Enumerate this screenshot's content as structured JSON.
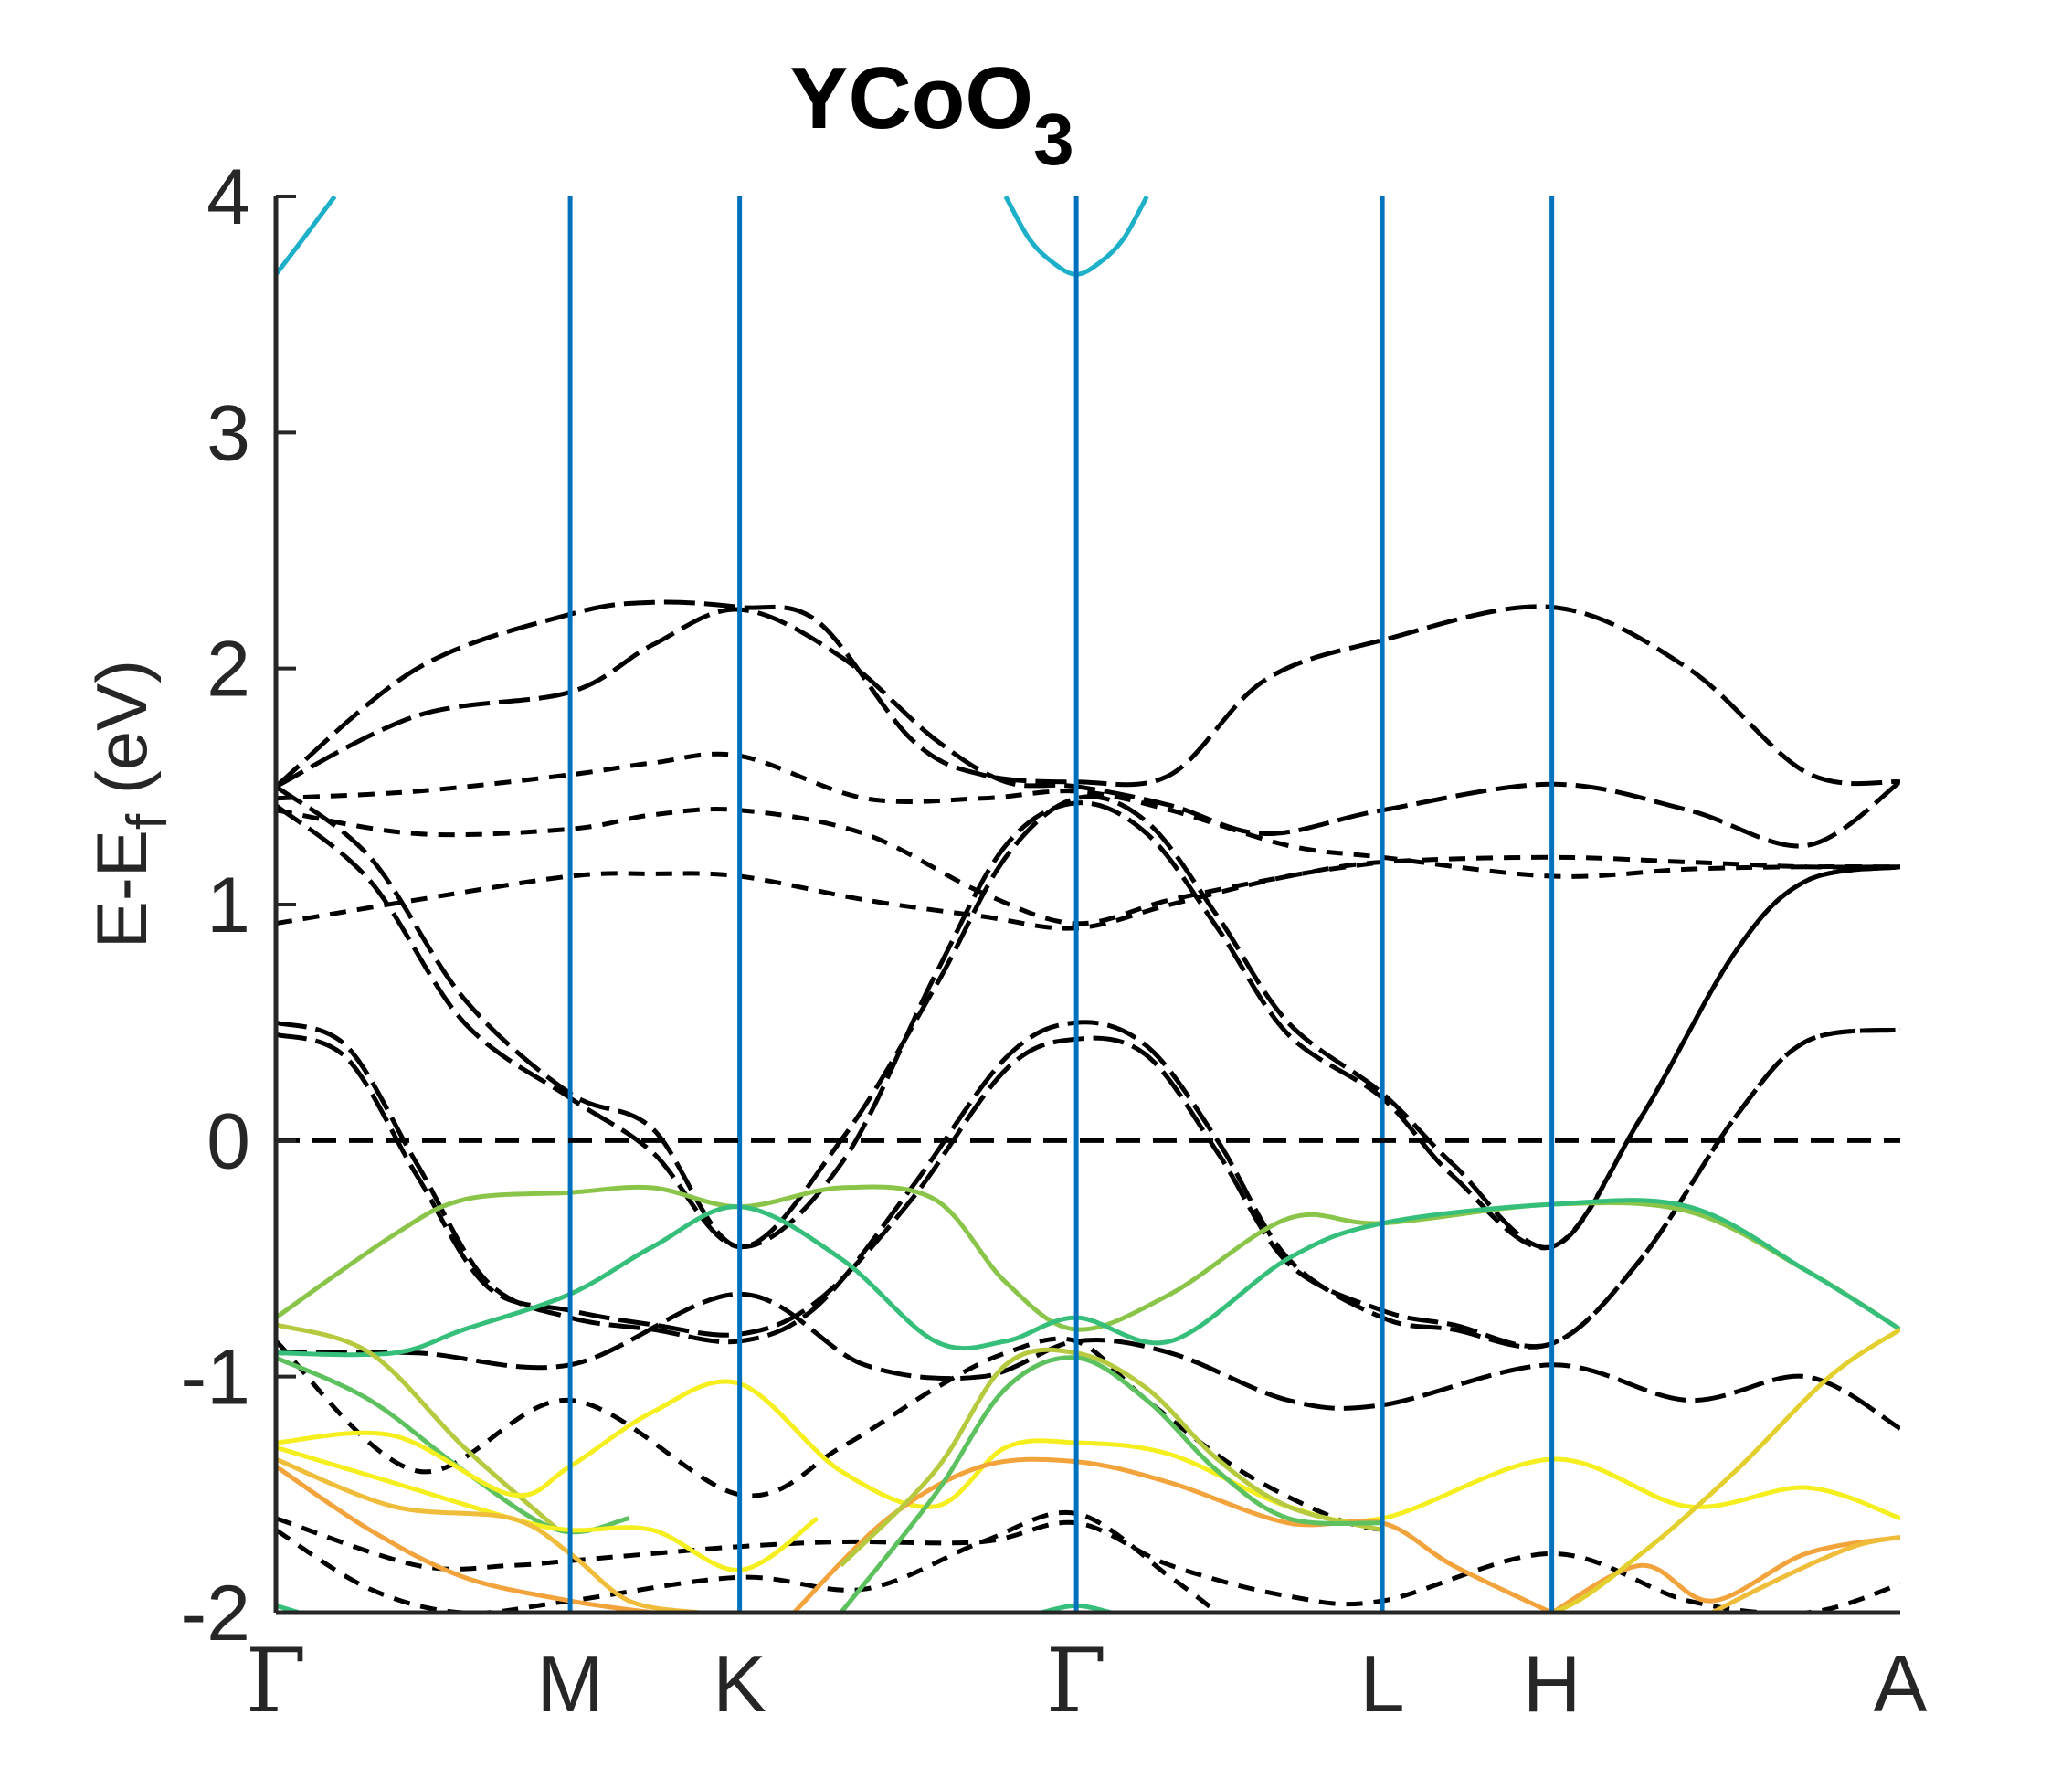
{
  "chart_data": {
    "type": "line",
    "title": "YCoO",
    "title_subscript": "3",
    "ylabel_main": "E-E",
    "ylabel_sub": "f",
    "ylabel_unit": " (eV)",
    "ylim": [
      -2,
      4
    ],
    "yticks": [
      -2,
      -1,
      0,
      1,
      2,
      3,
      4
    ],
    "xlim": [
      0,
      6.9
    ],
    "kpoints": [
      {
        "label": "Γ",
        "x": 0.0,
        "greek": true
      },
      {
        "label": "M",
        "x": 1.25,
        "greek": false
      },
      {
        "label": "K",
        "x": 1.97,
        "greek": false
      },
      {
        "label": "Γ",
        "x": 3.4,
        "greek": true
      },
      {
        "label": "L",
        "x": 4.7,
        "greek": false
      },
      {
        "label": "H",
        "x": 5.42,
        "greek": false
      },
      {
        "label": "A",
        "x": 6.9,
        "greek": false
      }
    ],
    "grid": false,
    "legend": "none",
    "colors": {
      "kpoint_line": "#0072bd",
      "dashed_band": "#000000",
      "fermi_line": "#000000",
      "palette": [
        "#1eb0c8",
        "#36bf7a",
        "#5cc15e",
        "#8ac54a",
        "#b7c93e",
        "#e3cf2e",
        "#f5ef20",
        "#f0bd3a",
        "#f2a33c"
      ]
    },
    "fermi_level": 0,
    "dashed_bands": [
      {
        "x": [
          0,
          0.6,
          1.25,
          1.6,
          1.97,
          2.3,
          2.7,
          3.0,
          3.4,
          3.8,
          4.2,
          4.7,
          5.42,
          6.0,
          6.5,
          6.9
        ],
        "y": [
          1.5,
          2.0,
          2.23,
          2.28,
          2.26,
          2.2,
          1.7,
          1.55,
          1.52,
          1.55,
          1.95,
          2.12,
          2.26,
          2.0,
          1.56,
          1.52
        ],
        "dash": "long"
      },
      {
        "x": [
          0,
          0.6,
          1.25,
          1.6,
          1.97,
          2.4,
          2.8,
          3.1,
          3.4,
          3.8,
          4.2,
          4.7,
          5.42,
          6.0,
          6.5,
          6.9
        ],
        "y": [
          1.5,
          1.8,
          1.9,
          2.1,
          2.25,
          2.05,
          1.7,
          1.52,
          1.5,
          1.42,
          1.3,
          1.4,
          1.51,
          1.4,
          1.25,
          1.52
        ],
        "dash": "long"
      },
      {
        "x": [
          0,
          0.6,
          1.25,
          1.6,
          1.97,
          2.5,
          3.0,
          3.4,
          3.8,
          4.3,
          4.7,
          5.42,
          6.0,
          6.5,
          6.9
        ],
        "y": [
          1.45,
          1.48,
          1.55,
          1.6,
          1.63,
          1.45,
          1.45,
          1.48,
          1.4,
          1.25,
          1.2,
          1.12,
          1.15,
          1.16,
          1.16
        ],
        "dash": "short"
      },
      {
        "x": [
          0,
          0.6,
          1.25,
          1.6,
          1.97,
          2.5,
          3.0,
          3.4,
          3.8,
          4.3,
          4.7,
          5.42,
          6.0,
          6.5,
          6.9
        ],
        "y": [
          1.4,
          1.3,
          1.32,
          1.38,
          1.4,
          1.3,
          1.05,
          0.92,
          1.02,
          1.12,
          1.18,
          1.2,
          1.18,
          1.16,
          1.16
        ],
        "dash": "short"
      },
      {
        "x": [
          0,
          0.6,
          1.25,
          1.6,
          1.97,
          2.5,
          3.0,
          3.4,
          3.8,
          4.3,
          4.7
        ],
        "y": [
          0.92,
          1.02,
          1.12,
          1.13,
          1.12,
          1.02,
          0.95,
          0.9,
          1.0,
          1.12,
          1.18
        ],
        "dash": "short"
      },
      {
        "x": [
          0,
          0.4,
          0.8,
          1.25,
          1.6,
          1.97,
          2.4,
          2.8,
          3.1,
          3.4,
          3.7,
          4.0,
          4.3,
          4.7,
          5.0,
          5.42,
          5.8,
          6.2,
          6.5,
          6.9
        ],
        "y": [
          1.5,
          1.2,
          0.6,
          0.2,
          0.05,
          -0.45,
          0.0,
          0.65,
          1.2,
          1.45,
          1.35,
          0.95,
          0.5,
          0.2,
          -0.1,
          -0.45,
          0.1,
          0.8,
          1.1,
          1.16
        ],
        "dash": "long"
      },
      {
        "x": [
          0,
          0.4,
          0.8,
          1.25,
          1.6,
          1.97,
          2.4,
          2.8,
          3.1,
          3.4,
          3.7,
          4.0,
          4.3,
          4.7,
          5.0,
          5.42,
          5.8,
          6.2,
          6.5,
          6.9
        ],
        "y": [
          1.42,
          1.1,
          0.5,
          0.18,
          -0.05,
          -0.45,
          -0.1,
          0.7,
          1.25,
          1.43,
          1.3,
          0.9,
          0.45,
          0.18,
          -0.15,
          -0.45,
          0.1,
          0.8,
          1.1,
          1.16
        ],
        "dash": "long"
      },
      {
        "x": [
          0,
          0.3,
          0.6,
          0.9,
          1.25,
          1.6,
          1.97,
          2.3,
          2.7,
          3.1,
          3.4,
          3.7,
          4.0,
          4.3,
          4.7,
          5.0,
          5.42,
          5.8,
          6.2,
          6.5,
          6.9
        ],
        "y": [
          0.5,
          0.4,
          -0.1,
          -0.6,
          -0.75,
          -0.8,
          -0.85,
          -0.7,
          -0.2,
          0.35,
          0.5,
          0.4,
          0.0,
          -0.5,
          -0.75,
          -0.8,
          -0.86,
          -0.5,
          0.1,
          0.42,
          0.47
        ],
        "dash": "long"
      },
      {
        "x": [
          0,
          0.3,
          0.6,
          0.9,
          1.25,
          1.6,
          1.97,
          2.3,
          2.7,
          3.1,
          3.4,
          3.7,
          4.0,
          4.3,
          4.7,
          5.0,
          5.42,
          5.8,
          6.2,
          6.5,
          6.9
        ],
        "y": [
          0.45,
          0.35,
          -0.15,
          -0.62,
          -0.72,
          -0.78,
          -0.82,
          -0.68,
          -0.25,
          0.3,
          0.43,
          0.36,
          -0.05,
          -0.52,
          -0.72,
          -0.78,
          -0.86,
          -0.5,
          0.1,
          0.42,
          0.47
        ],
        "dash": "long"
      },
      {
        "x": [
          0,
          0.6,
          1.25,
          1.97,
          2.5,
          3.0,
          3.4,
          3.8,
          4.3,
          4.7,
          5.42,
          6.0,
          6.5,
          6.9
        ],
        "y": [
          -0.9,
          -0.9,
          -0.95,
          -0.65,
          -0.95,
          -1.0,
          -0.85,
          -0.9,
          -1.1,
          -1.12,
          -0.95,
          -1.1,
          -1.0,
          -1.22
        ],
        "dash": "long"
      },
      {
        "x": [
          0,
          0.6,
          1.25,
          1.97,
          2.4,
          2.8,
          3.1,
          3.4,
          3.7,
          4.1,
          4.5,
          4.7
        ],
        "y": [
          -0.85,
          -1.4,
          -1.1,
          -1.5,
          -1.3,
          -1.05,
          -0.9,
          -0.85,
          -1.1,
          -1.4,
          -1.6,
          -1.65
        ],
        "dash": "short"
      },
      {
        "x": [
          0,
          0.6,
          1.0,
          1.25,
          1.6,
          1.97,
          2.4,
          3.0,
          3.4,
          3.8,
          4.3,
          4.7,
          5.42,
          6.0,
          6.5,
          6.9
        ],
        "y": [
          -1.6,
          -1.8,
          -1.8,
          -1.78,
          -1.75,
          -1.72,
          -1.7,
          -1.7,
          -1.62,
          -1.8,
          -1.93,
          -1.95,
          -1.75,
          -1.95,
          -2.0,
          -1.88
        ],
        "dash": "short"
      },
      {
        "x": [
          0,
          0.4,
          0.8,
          1.25,
          1.97,
          2.5,
          3.0,
          3.4,
          3.8,
          4.0
        ],
        "y": [
          -1.65,
          -1.9,
          -2.0,
          -1.95,
          -1.85,
          -1.9,
          -1.7,
          -1.58,
          -1.85,
          -2.0
        ],
        "dash": "short"
      }
    ],
    "colored_bands": [
      {
        "x": [
          0,
          0.5,
          0.8,
          1.25,
          1.6,
          1.97,
          2.4,
          2.8,
          3.1,
          3.4,
          3.8,
          4.3,
          4.7,
          5.42,
          6.0,
          6.5,
          6.9
        ],
        "y": [
          -0.75,
          -0.4,
          -0.25,
          -0.22,
          -0.2,
          -0.28,
          -0.2,
          -0.25,
          -0.6,
          -0.8,
          -0.65,
          -0.33,
          -0.35,
          -0.27,
          -0.3,
          -0.55,
          -0.8
        ],
        "color": "#8ac54a"
      },
      {
        "x": [
          0,
          0.5,
          0.8,
          1.25,
          1.6,
          1.97,
          2.4,
          2.8,
          3.1,
          3.4,
          3.8,
          4.3,
          4.7,
          5.42,
          6.0,
          6.5,
          6.9
        ],
        "y": [
          -0.9,
          -0.9,
          -0.8,
          -0.65,
          -0.45,
          -0.28,
          -0.5,
          -0.85,
          -0.85,
          -0.75,
          -0.85,
          -0.5,
          -0.35,
          -0.27,
          -0.28,
          -0.55,
          -0.8
        ],
        "color": "#36bf7a"
      },
      {
        "x": [
          0,
          0.4,
          0.8,
          1.2
        ],
        "y": [
          -0.78,
          -0.9,
          -1.3,
          -1.65
        ],
        "color": "#b7c93e"
      },
      {
        "x": [
          0,
          0.4,
          0.8,
          1.2,
          1.5
        ],
        "y": [
          -0.92,
          -1.1,
          -1.4,
          -1.65,
          -1.6
        ],
        "color": "#5cc15e"
      },
      {
        "x": [
          0,
          0.5,
          1.0,
          1.25,
          1.6,
          1.97,
          2.4,
          2.8,
          3.1,
          3.4,
          3.8,
          4.3,
          4.7,
          5.42,
          6.0,
          6.5,
          6.9
        ],
        "y": [
          -1.28,
          -1.25,
          -1.5,
          -1.38,
          -1.15,
          -1.03,
          -1.4,
          -1.55,
          -1.3,
          -1.28,
          -1.33,
          -1.55,
          -1.6,
          -1.35,
          -1.55,
          -1.47,
          -1.6
        ],
        "color": "#f5ef20"
      },
      {
        "x": [
          0,
          0.5,
          1.0,
          1.25,
          1.6,
          1.97,
          2.3
        ],
        "y": [
          -1.3,
          -1.45,
          -1.6,
          -1.65,
          -1.65,
          -1.82,
          -1.6
        ],
        "color": "#f5ef20"
      },
      {
        "x": [
          0,
          0.5,
          1.0,
          1.25,
          1.5,
          1.8
        ],
        "y": [
          -1.35,
          -1.55,
          -1.6,
          -1.75,
          -1.95,
          -2.0
        ],
        "color": "#f0bd3a"
      },
      {
        "x": [
          0,
          0.4,
          0.8,
          1.25,
          1.6
        ],
        "y": [
          -1.38,
          -1.65,
          -1.85,
          -1.95,
          -2.0
        ],
        "color": "#f2a33c"
      },
      {
        "x": [
          2.2,
          2.6,
          3.0,
          3.4,
          3.8,
          4.3,
          4.7,
          5.0,
          5.42
        ],
        "y": [
          -2.0,
          -1.6,
          -1.38,
          -1.36,
          -1.45,
          -1.62,
          -1.62,
          -1.8,
          -2.0
        ],
        "color": "#f2a33c"
      },
      {
        "x": [
          2.4,
          2.8,
          3.1,
          3.4,
          3.7,
          4.0,
          4.3,
          4.7
        ],
        "y": [
          -1.8,
          -1.4,
          -0.95,
          -0.9,
          -1.05,
          -1.35,
          -1.55,
          -1.65
        ],
        "color": "#b7c93e"
      },
      {
        "x": [
          2.4,
          2.8,
          3.1,
          3.4,
          3.7,
          4.0,
          4.3,
          4.7
        ],
        "y": [
          -2.0,
          -1.5,
          -1.05,
          -0.92,
          -1.1,
          -1.4,
          -1.6,
          -1.62
        ],
        "color": "#5cc15e"
      },
      {
        "x": [
          5.42,
          5.8,
          6.1,
          6.5,
          6.9
        ],
        "y": [
          -2.0,
          -1.8,
          -1.95,
          -1.75,
          -1.68
        ],
        "color": "#f2a33c"
      },
      {
        "x": [
          6.1,
          6.4,
          6.7,
          6.9
        ],
        "y": [
          -2.0,
          -1.85,
          -1.72,
          -1.68
        ],
        "color": "#f0bd3a"
      },
      {
        "x": [
          5.0,
          5.42,
          5.8,
          6.2,
          6.6,
          6.9
        ],
        "y": [
          -2.0,
          -2.0,
          -1.75,
          -1.4,
          -1.0,
          -0.8
        ],
        "color": "#e3cf2e"
      },
      {
        "x": [
          0,
          0.1,
          0.25
        ],
        "y": [
          3.67,
          3.8,
          4.0
        ],
        "color": "#1eb0c8"
      },
      {
        "x": [
          3.1,
          3.2,
          3.3,
          3.4,
          3.5,
          3.6,
          3.7
        ],
        "y": [
          4.0,
          3.82,
          3.72,
          3.67,
          3.72,
          3.82,
          4.0
        ],
        "color": "#1eb0c8"
      },
      {
        "x": [
          3.25,
          3.4,
          3.55
        ],
        "y": [
          -2.0,
          -1.97,
          -2.0
        ],
        "color": "#36bf7a"
      },
      {
        "x": [
          0,
          0.1
        ],
        "y": [
          -1.97,
          -2.0
        ],
        "color": "#36bf7a"
      }
    ]
  }
}
